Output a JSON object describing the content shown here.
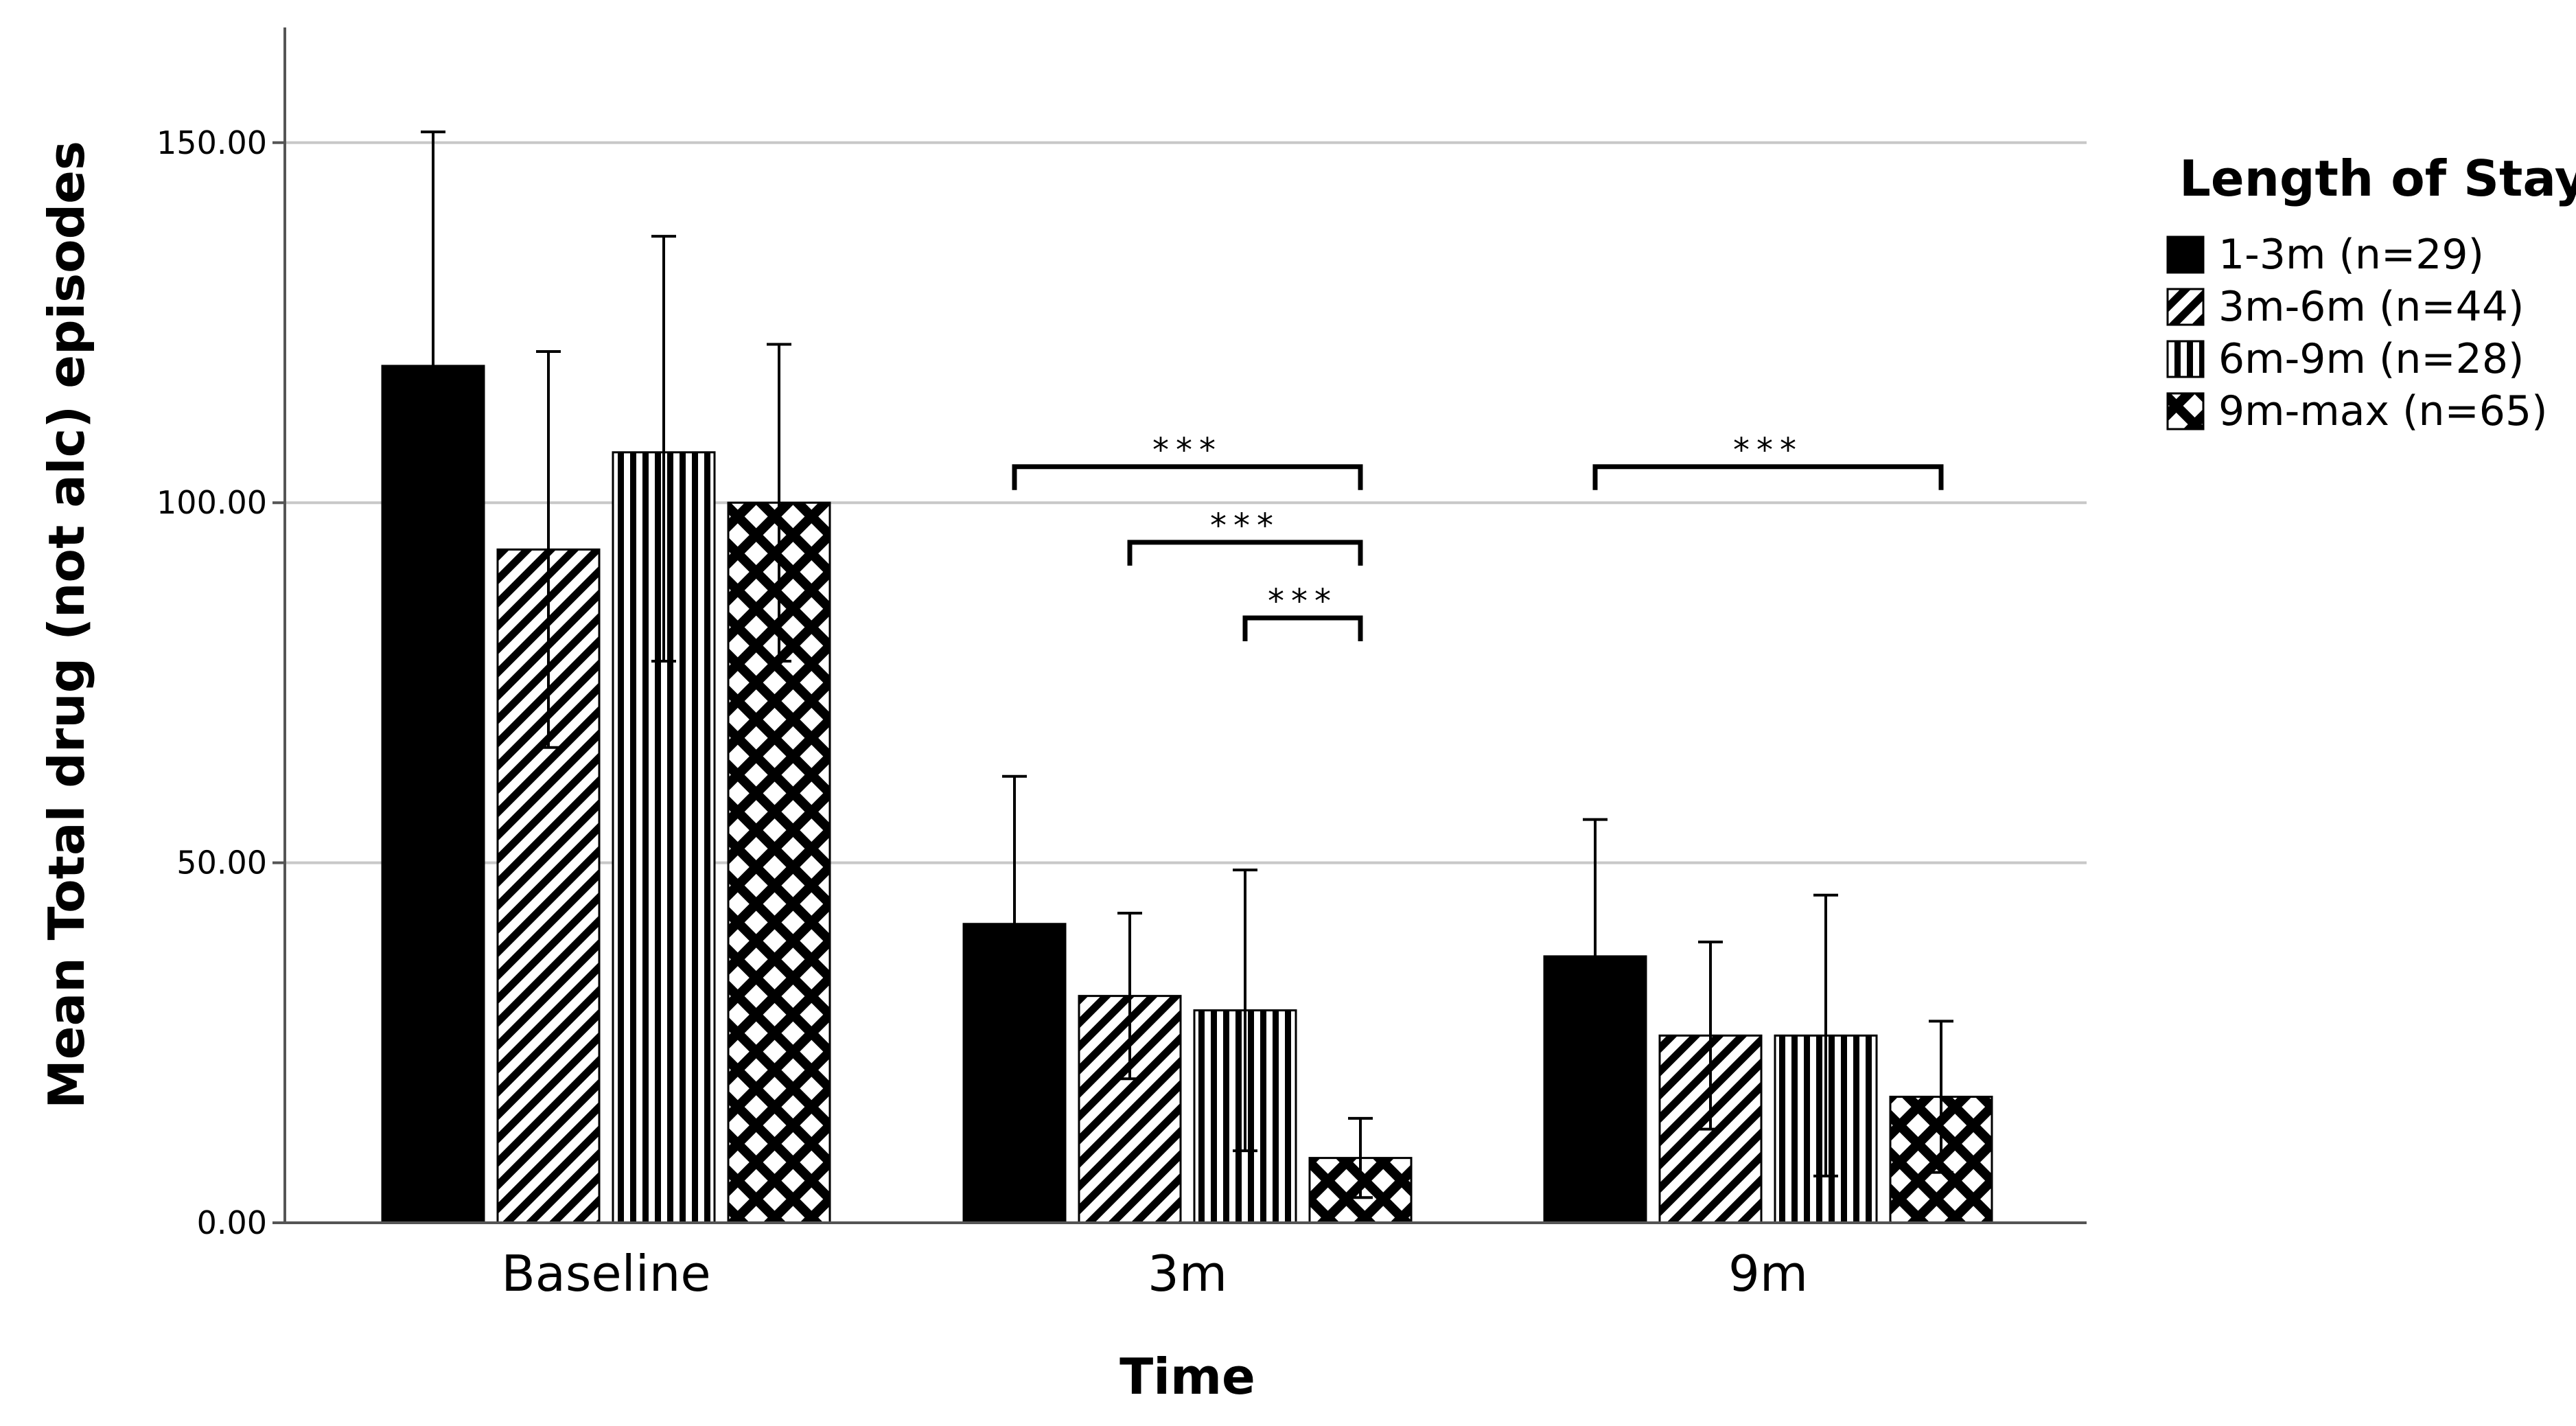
{
  "chart_data": {
    "type": "bar",
    "title": "",
    "xlabel": "Time",
    "ylabel": "Mean Total drug (not alc) episodes",
    "categories": [
      "Baseline",
      "3m",
      "9m"
    ],
    "ylim": [
      0,
      166
    ],
    "yticks": [
      0,
      50,
      100,
      150
    ],
    "ytick_labels": [
      "0.00",
      "50.00",
      "100.00",
      "150.00"
    ],
    "grid": true,
    "legend_title": "Length of Stay",
    "legend_position": "right",
    "series": [
      {
        "name": "1-3m (n=29)",
        "pattern": "solid",
        "values": [
          119.0,
          41.5,
          37.0
        ],
        "error_upper": [
          151.5,
          62.0,
          56.0
        ],
        "error_lower": [
          119.0,
          41.5,
          37.0
        ]
      },
      {
        "name": "3m-6m (n=44)",
        "pattern": "diagonal",
        "values": [
          93.5,
          31.5,
          26.0
        ],
        "error_upper": [
          121.0,
          43.0,
          39.0
        ],
        "error_lower": [
          66.0,
          20.0,
          13.0
        ]
      },
      {
        "name": "6m-9m (n=28)",
        "pattern": "vertical",
        "values": [
          107.0,
          29.5,
          26.0
        ],
        "error_upper": [
          137.0,
          49.0,
          45.5
        ],
        "error_lower": [
          78.0,
          10.0,
          6.5
        ]
      },
      {
        "name": "9m-max (n=65)",
        "pattern": "crosshatch",
        "values": [
          100.0,
          9.0,
          17.5
        ],
        "error_upper": [
          122.0,
          14.5,
          28.0
        ],
        "error_lower": [
          78.0,
          3.5,
          7.0
        ]
      }
    ],
    "significance": [
      {
        "category": "3m",
        "from_series": 0,
        "to_series": 3,
        "y": 105,
        "label": "***"
      },
      {
        "category": "3m",
        "from_series": 1,
        "to_series": 3,
        "y": 94.5,
        "label": "***"
      },
      {
        "category": "3m",
        "from_series": 2,
        "to_series": 3,
        "y": 84,
        "label": "***"
      },
      {
        "category": "9m",
        "from_series": 0,
        "to_series": 3,
        "y": 105,
        "label": "***"
      }
    ]
  }
}
